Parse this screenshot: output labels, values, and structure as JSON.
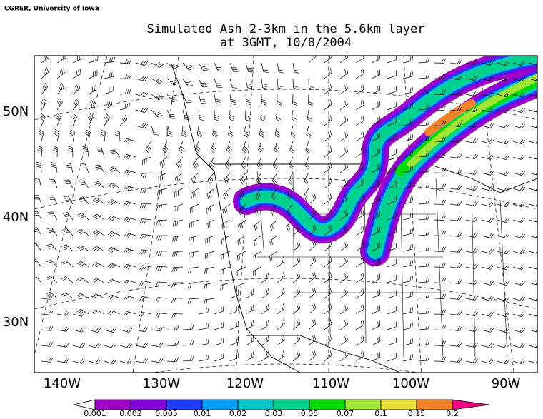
{
  "credit": "CGRER, University of Iowa",
  "title": [
    "Simulated Ash 2-3km in the 5.6km layer",
    "at 3GMT, 10/8/2004"
  ],
  "lon_labels": [
    "140W",
    "130W",
    "120W",
    "110W",
    "100W",
    "90W"
  ],
  "lat_labels": [
    "50N",
    "40N",
    "30N"
  ],
  "legend": {
    "levels": [
      0.001,
      0.002,
      0.005,
      0.01,
      0.02,
      0.03,
      0.05,
      0.07,
      0.1,
      0.15,
      0.2
    ],
    "colors": [
      "#ffffff",
      "#a000c8",
      "#8200dc",
      "#1e3cff",
      "#00a0ff",
      "#00c8c8",
      "#00d28c",
      "#00dc00",
      "#a0e632",
      "#e6dc32",
      "#f08228",
      "#fa3c3c",
      "#f00082"
    ]
  }
}
